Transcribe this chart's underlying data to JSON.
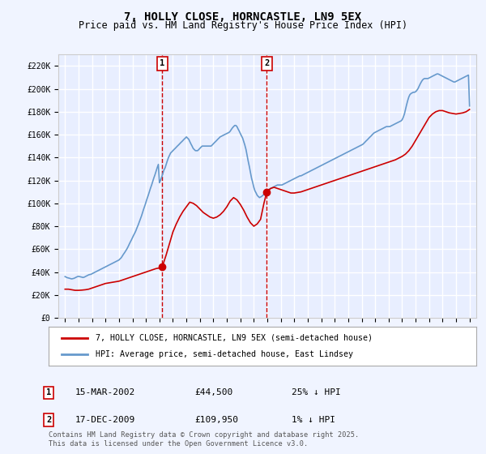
{
  "title": "7, HOLLY CLOSE, HORNCASTLE, LN9 5EX",
  "subtitle": "Price paid vs. HM Land Registry's House Price Index (HPI)",
  "xlabel": "",
  "ylabel": "",
  "ylim": [
    0,
    230000
  ],
  "yticks": [
    0,
    20000,
    40000,
    60000,
    80000,
    100000,
    120000,
    140000,
    160000,
    180000,
    200000,
    220000
  ],
  "ytick_labels": [
    "£0",
    "£20K",
    "£40K",
    "£60K",
    "£80K",
    "£100K",
    "£120K",
    "£140K",
    "£160K",
    "£180K",
    "£200K",
    "£220K"
  ],
  "background_color": "#f0f4ff",
  "plot_bg_color": "#e8eeff",
  "grid_color": "#ffffff",
  "line_color_red": "#cc0000",
  "line_color_blue": "#6699cc",
  "vline_color": "#cc0000",
  "sale1_year": 2002.21,
  "sale1_price": 44500,
  "sale1_label": "1",
  "sale2_year": 2009.96,
  "sale2_price": 109950,
  "sale2_label": "2",
  "legend_line1": "7, HOLLY CLOSE, HORNCASTLE, LN9 5EX (semi-detached house)",
  "legend_line2": "HPI: Average price, semi-detached house, East Lindsey",
  "table_data": [
    {
      "num": "1",
      "date": "15-MAR-2002",
      "price": "£44,500",
      "hpi": "25% ↓ HPI"
    },
    {
      "num": "2",
      "date": "17-DEC-2009",
      "price": "£109,950",
      "hpi": "1% ↓ HPI"
    }
  ],
  "footnote": "Contains HM Land Registry data © Crown copyright and database right 2025.\nThis data is licensed under the Open Government Licence v3.0.",
  "hpi_data": {
    "years": [
      1995.0,
      1995.08,
      1995.17,
      1995.25,
      1995.33,
      1995.42,
      1995.5,
      1995.58,
      1995.67,
      1995.75,
      1995.83,
      1995.92,
      1996.0,
      1996.08,
      1996.17,
      1996.25,
      1996.33,
      1996.42,
      1996.5,
      1996.58,
      1996.67,
      1996.75,
      1996.83,
      1996.92,
      1997.0,
      1997.08,
      1997.17,
      1997.25,
      1997.33,
      1997.42,
      1997.5,
      1997.58,
      1997.67,
      1997.75,
      1997.83,
      1997.92,
      1998.0,
      1998.08,
      1998.17,
      1998.25,
      1998.33,
      1998.42,
      1998.5,
      1998.58,
      1998.67,
      1998.75,
      1998.83,
      1998.92,
      1999.0,
      1999.08,
      1999.17,
      1999.25,
      1999.33,
      1999.42,
      1999.5,
      1999.58,
      1999.67,
      1999.75,
      1999.83,
      1999.92,
      2000.0,
      2000.08,
      2000.17,
      2000.25,
      2000.33,
      2000.42,
      2000.5,
      2000.58,
      2000.67,
      2000.75,
      2000.83,
      2000.92,
      2001.0,
      2001.08,
      2001.17,
      2001.25,
      2001.33,
      2001.42,
      2001.5,
      2001.58,
      2001.67,
      2001.75,
      2001.83,
      2001.92,
      2002.0,
      2002.08,
      2002.17,
      2002.25,
      2002.33,
      2002.42,
      2002.5,
      2002.58,
      2002.67,
      2002.75,
      2002.83,
      2002.92,
      2003.0,
      2003.08,
      2003.17,
      2003.25,
      2003.33,
      2003.42,
      2003.5,
      2003.58,
      2003.67,
      2003.75,
      2003.83,
      2003.92,
      2004.0,
      2004.08,
      2004.17,
      2004.25,
      2004.33,
      2004.42,
      2004.5,
      2004.58,
      2004.67,
      2004.75,
      2004.83,
      2004.92,
      2005.0,
      2005.08,
      2005.17,
      2005.25,
      2005.33,
      2005.42,
      2005.5,
      2005.58,
      2005.67,
      2005.75,
      2005.83,
      2005.92,
      2006.0,
      2006.08,
      2006.17,
      2006.25,
      2006.33,
      2006.42,
      2006.5,
      2006.58,
      2006.67,
      2006.75,
      2006.83,
      2006.92,
      2007.0,
      2007.08,
      2007.17,
      2007.25,
      2007.33,
      2007.42,
      2007.5,
      2007.58,
      2007.67,
      2007.75,
      2007.83,
      2007.92,
      2008.0,
      2008.08,
      2008.17,
      2008.25,
      2008.33,
      2008.42,
      2008.5,
      2008.58,
      2008.67,
      2008.75,
      2008.83,
      2008.92,
      2009.0,
      2009.08,
      2009.17,
      2009.25,
      2009.33,
      2009.42,
      2009.5,
      2009.58,
      2009.67,
      2009.75,
      2009.83,
      2009.92,
      2010.0,
      2010.08,
      2010.17,
      2010.25,
      2010.33,
      2010.42,
      2010.5,
      2010.58,
      2010.67,
      2010.75,
      2010.83,
      2010.92,
      2011.0,
      2011.08,
      2011.17,
      2011.25,
      2011.33,
      2011.42,
      2011.5,
      2011.58,
      2011.67,
      2011.75,
      2011.83,
      2011.92,
      2012.0,
      2012.08,
      2012.17,
      2012.25,
      2012.33,
      2012.42,
      2012.5,
      2012.58,
      2012.67,
      2012.75,
      2012.83,
      2012.92,
      2013.0,
      2013.08,
      2013.17,
      2013.25,
      2013.33,
      2013.42,
      2013.5,
      2013.58,
      2013.67,
      2013.75,
      2013.83,
      2013.92,
      2014.0,
      2014.08,
      2014.17,
      2014.25,
      2014.33,
      2014.42,
      2014.5,
      2014.58,
      2014.67,
      2014.75,
      2014.83,
      2014.92,
      2015.0,
      2015.08,
      2015.17,
      2015.25,
      2015.33,
      2015.42,
      2015.5,
      2015.58,
      2015.67,
      2015.75,
      2015.83,
      2015.92,
      2016.0,
      2016.08,
      2016.17,
      2016.25,
      2016.33,
      2016.42,
      2016.5,
      2016.58,
      2016.67,
      2016.75,
      2016.83,
      2016.92,
      2017.0,
      2017.08,
      2017.17,
      2017.25,
      2017.33,
      2017.42,
      2017.5,
      2017.58,
      2017.67,
      2017.75,
      2017.83,
      2017.92,
      2018.0,
      2018.08,
      2018.17,
      2018.25,
      2018.33,
      2018.42,
      2018.5,
      2018.58,
      2018.67,
      2018.75,
      2018.83,
      2018.92,
      2019.0,
      2019.08,
      2019.17,
      2019.25,
      2019.33,
      2019.42,
      2019.5,
      2019.58,
      2019.67,
      2019.75,
      2019.83,
      2019.92,
      2020.0,
      2020.08,
      2020.17,
      2020.25,
      2020.33,
      2020.42,
      2020.5,
      2020.58,
      2020.67,
      2020.75,
      2020.83,
      2020.92,
      2021.0,
      2021.08,
      2021.17,
      2021.25,
      2021.33,
      2021.42,
      2021.5,
      2021.58,
      2021.67,
      2021.75,
      2021.83,
      2021.92,
      2022.0,
      2022.08,
      2022.17,
      2022.25,
      2022.33,
      2022.42,
      2022.5,
      2022.58,
      2022.67,
      2022.75,
      2022.83,
      2022.92,
      2023.0,
      2023.08,
      2023.17,
      2023.25,
      2023.33,
      2023.42,
      2023.5,
      2023.58,
      2023.67,
      2023.75,
      2023.83,
      2023.92,
      2024.0,
      2024.08,
      2024.17,
      2024.25,
      2024.33,
      2024.42,
      2024.5,
      2024.58,
      2024.67,
      2024.75,
      2024.83,
      2024.92,
      2025.0
    ],
    "values": [
      36000,
      35500,
      35000,
      34800,
      34500,
      34200,
      34000,
      34200,
      34500,
      35000,
      35500,
      36000,
      36200,
      36000,
      35800,
      35500,
      35200,
      35500,
      36000,
      36500,
      37000,
      37500,
      37800,
      38000,
      38500,
      39000,
      39500,
      40000,
      40500,
      41000,
      41500,
      42000,
      42500,
      43000,
      43500,
      44000,
      44500,
      45000,
      45500,
      46000,
      46500,
      47000,
      47500,
      48000,
      48500,
      49000,
      49500,
      50000,
      50500,
      51500,
      52500,
      54000,
      55500,
      57000,
      58500,
      60000,
      62000,
      64000,
      66000,
      68000,
      70000,
      72000,
      74000,
      76000,
      78500,
      81000,
      83500,
      86000,
      89000,
      92000,
      95000,
      98000,
      101000,
      104000,
      107000,
      110000,
      113000,
      116000,
      119000,
      122000,
      125000,
      128000,
      131000,
      134000,
      118000,
      120000,
      123000,
      126000,
      129000,
      131000,
      134000,
      137000,
      140000,
      142000,
      144000,
      145000,
      146000,
      147000,
      148000,
      149000,
      150000,
      151000,
      152000,
      153000,
      154000,
      155000,
      156000,
      157000,
      158000,
      157000,
      156000,
      154000,
      152000,
      150000,
      148000,
      147000,
      146000,
      146000,
      146000,
      147000,
      148000,
      149000,
      150000,
      150000,
      150000,
      150000,
      150000,
      150000,
      150000,
      150000,
      150000,
      151000,
      152000,
      153000,
      154000,
      155000,
      156000,
      157000,
      158000,
      158500,
      159000,
      159500,
      160000,
      160500,
      161000,
      161500,
      162000,
      163000,
      164500,
      166000,
      167000,
      168000,
      168000,
      167000,
      165000,
      163000,
      161000,
      159000,
      157000,
      154000,
      151000,
      147000,
      142000,
      137000,
      132000,
      127000,
      122000,
      118000,
      114000,
      111000,
      109000,
      107000,
      106000,
      105000,
      105500,
      106000,
      107000,
      108000,
      109000,
      110000,
      111000,
      112000,
      112500,
      113000,
      113500,
      114000,
      114500,
      115000,
      115500,
      116000,
      116000,
      116000,
      116000,
      116000,
      116500,
      117000,
      117500,
      118000,
      118500,
      119000,
      119500,
      120000,
      120500,
      121000,
      121500,
      122000,
      122500,
      123000,
      123500,
      124000,
      124000,
      124500,
      125000,
      125500,
      126000,
      126500,
      127000,
      127500,
      128000,
      128500,
      129000,
      129500,
      130000,
      130500,
      131000,
      131500,
      132000,
      132500,
      133000,
      133500,
      134000,
      134500,
      135000,
      135500,
      136000,
      136500,
      137000,
      137500,
      138000,
      138500,
      139000,
      139500,
      140000,
      140500,
      141000,
      141500,
      142000,
      142500,
      143000,
      143500,
      144000,
      144500,
      145000,
      145500,
      146000,
      146500,
      147000,
      147500,
      148000,
      148500,
      149000,
      149500,
      150000,
      150500,
      151000,
      151500,
      152500,
      153500,
      154500,
      155500,
      156500,
      157500,
      158500,
      159500,
      160500,
      161500,
      162000,
      162500,
      163000,
      163500,
      164000,
      164500,
      165000,
      165500,
      166000,
      166500,
      167000,
      167000,
      167000,
      167000,
      167500,
      168000,
      168500,
      169000,
      169500,
      170000,
      170500,
      171000,
      171500,
      172000,
      173000,
      175000,
      178000,
      182000,
      186000,
      190000,
      193000,
      195000,
      196000,
      196500,
      197000,
      197000,
      197500,
      198500,
      200000,
      202000,
      204000,
      206000,
      207500,
      208500,
      209000,
      209000,
      209000,
      209000,
      209500,
      210000,
      210500,
      211000,
      211500,
      212000,
      212500,
      213000,
      213000,
      212500,
      212000,
      211500,
      211000,
      210500,
      210000,
      209500,
      209000,
      208500,
      208000,
      207500,
      207000,
      206500,
      206000,
      206000,
      206500,
      207000,
      207500,
      208000,
      208500,
      209000,
      209500,
      210000,
      210500,
      211000,
      211500,
      212000,
      185000
    ]
  },
  "price_data": {
    "years": [
      1995.0,
      1995.25,
      1995.5,
      1995.75,
      1996.0,
      1996.25,
      1996.5,
      1996.75,
      1997.0,
      1997.25,
      1997.5,
      1997.75,
      1998.0,
      1998.25,
      1998.5,
      1998.75,
      1999.0,
      1999.25,
      1999.5,
      1999.75,
      2000.0,
      2000.25,
      2000.5,
      2000.75,
      2001.0,
      2001.25,
      2001.5,
      2001.75,
      2002.0,
      2002.21,
      2002.5,
      2002.75,
      2003.0,
      2003.25,
      2003.5,
      2003.75,
      2004.0,
      2004.25,
      2004.5,
      2004.75,
      2005.0,
      2005.25,
      2005.5,
      2005.75,
      2006.0,
      2006.25,
      2006.5,
      2006.75,
      2007.0,
      2007.25,
      2007.5,
      2007.75,
      2008.0,
      2008.25,
      2008.5,
      2008.75,
      2009.0,
      2009.25,
      2009.5,
      2009.75,
      2009.96,
      2010.25,
      2010.5,
      2010.75,
      2011.0,
      2011.25,
      2011.5,
      2011.75,
      2012.0,
      2012.25,
      2012.5,
      2012.75,
      2013.0,
      2013.25,
      2013.5,
      2013.75,
      2014.0,
      2014.25,
      2014.5,
      2014.75,
      2015.0,
      2015.25,
      2015.5,
      2015.75,
      2016.0,
      2016.25,
      2016.5,
      2016.75,
      2017.0,
      2017.25,
      2017.5,
      2017.75,
      2018.0,
      2018.25,
      2018.5,
      2018.75,
      2019.0,
      2019.25,
      2019.5,
      2019.75,
      2020.0,
      2020.25,
      2020.5,
      2020.75,
      2021.0,
      2021.25,
      2021.5,
      2021.75,
      2022.0,
      2022.25,
      2022.5,
      2022.75,
      2023.0,
      2023.25,
      2023.5,
      2023.75,
      2024.0,
      2024.25,
      2024.5,
      2024.75,
      2025.0
    ],
    "values": [
      25000,
      25000,
      24500,
      24000,
      24000,
      24200,
      24500,
      25000,
      26000,
      27000,
      28000,
      29000,
      30000,
      30500,
      31000,
      31500,
      32000,
      33000,
      34000,
      35000,
      36000,
      37000,
      38000,
      39000,
      40000,
      41000,
      42000,
      43000,
      43500,
      44500,
      55000,
      65000,
      75000,
      82000,
      88000,
      93000,
      97000,
      101000,
      100000,
      98000,
      95000,
      92000,
      90000,
      88000,
      87000,
      88000,
      90000,
      93000,
      97000,
      102000,
      105000,
      103000,
      99000,
      94000,
      88000,
      83000,
      80000,
      82000,
      86000,
      100000,
      109950,
      113000,
      114000,
      113000,
      112000,
      111000,
      110000,
      109000,
      109000,
      109500,
      110000,
      111000,
      112000,
      113000,
      114000,
      115000,
      116000,
      117000,
      118000,
      119000,
      120000,
      121000,
      122000,
      123000,
      124000,
      125000,
      126000,
      127000,
      128000,
      129000,
      130000,
      131000,
      132000,
      133000,
      134000,
      135000,
      136000,
      137000,
      138000,
      139500,
      141000,
      143000,
      146000,
      150000,
      155000,
      160000,
      165000,
      170000,
      175000,
      178000,
      180000,
      181000,
      181000,
      180000,
      179000,
      178500,
      178000,
      178500,
      179000,
      180000,
      182000
    ]
  }
}
